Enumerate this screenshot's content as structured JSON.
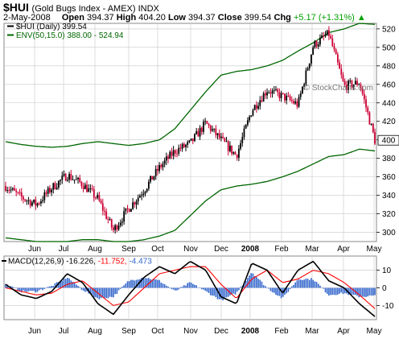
{
  "header": {
    "symbol": "$HUI",
    "name": "(Gold Bugs Index - AMEX) INDX",
    "date": "2-May-2008",
    "open_label": "Open",
    "open": "394.37",
    "high_label": "High",
    "high": "404.20",
    "low_label": "Low",
    "low": "394.37",
    "close_label": "Close",
    "close": "399.54",
    "chg_label": "Chg",
    "chg": "+5.17 (+1.31%)",
    "chg_arrow": "▲"
  },
  "watermark": "© StockCharts.com",
  "colors": {
    "price": "#000000",
    "down_candle": "#cc0033",
    "envelope": "#006600",
    "macd": "#000000",
    "signal": "#ff0000",
    "histogram": "#3366cc",
    "grid": "#c8c8c8",
    "positive": "#00a000"
  },
  "chart_data": [
    {
      "type": "line",
      "legend": [
        {
          "label": "$HUI (Daily) 399.54",
          "color": "#000000",
          "icon": "line-swatch"
        },
        {
          "label": "ENV(50,15.0) 388.00 - 524.94",
          "color": "#006600",
          "icon": "line-swatch"
        }
      ],
      "x_ticks": [
        "Jun",
        "Jul",
        "Aug",
        "Sep",
        "Oct",
        "Nov",
        "Dec",
        "2008",
        "Feb",
        "Mar",
        "Apr",
        "May"
      ],
      "y_ticks": [
        300,
        320,
        340,
        360,
        380,
        400,
        420,
        440,
        460,
        480,
        500,
        520
      ],
      "ylim": [
        290,
        526
      ],
      "grid": true,
      "y_axis_side": "right",
      "last_value_marker": 399.54,
      "x": [
        "May-2",
        "May-15",
        "Jun-1",
        "Jun-15",
        "Jul-1",
        "Jul-15",
        "Aug-1",
        "Aug-16",
        "Sep-1",
        "Sep-15",
        "Oct-1",
        "Oct-15",
        "Nov-1",
        "Nov-15",
        "Dec-1",
        "Dec-15",
        "Jan-1",
        "Jan-15",
        "Feb-1",
        "Feb-15",
        "Mar-1",
        "Mar-17",
        "Apr-1",
        "Apr-15",
        "May-2"
      ],
      "series": [
        {
          "name": "$HUI (Daily)",
          "values": [
            350,
            338,
            330,
            348,
            362,
            352,
            336,
            302,
            326,
            346,
            370,
            388,
            396,
            418,
            400,
            383,
            432,
            454,
            447,
            438,
            502,
            515,
            458,
            462,
            399.54
          ]
        },
        {
          "name": "ENV upper",
          "values": [
            398,
            395,
            393,
            392,
            393,
            396,
            398,
            396,
            394,
            396,
            400,
            412,
            432,
            452,
            470,
            474,
            476,
            480,
            486,
            496,
            505,
            516,
            520,
            526,
            524.94
          ]
        },
        {
          "name": "ENV lower",
          "values": [
            294,
            292,
            290,
            290,
            290,
            292,
            292,
            290,
            290,
            292,
            296,
            302,
            318,
            334,
            346,
            350,
            352,
            355,
            360,
            366,
            374,
            382,
            384,
            390,
            388.0
          ]
        }
      ]
    },
    {
      "type": "line",
      "legend": [
        {
          "label": "MACD(12,26,9)",
          "color": "#000000",
          "value": "-16.226,"
        },
        {
          "label": "",
          "color": "#ff0000",
          "value": "-11.752,"
        },
        {
          "label": "",
          "color": "#3366cc",
          "value": "-4.473"
        }
      ],
      "x_ticks": [
        "Jun",
        "Jul",
        "Aug",
        "Sep",
        "Oct",
        "Nov",
        "Dec",
        "2008",
        "Feb",
        "Mar",
        "Apr",
        "May"
      ],
      "y_ticks": [
        -10,
        0,
        10
      ],
      "ylim": [
        -18,
        18
      ],
      "grid": true,
      "x": [
        "May-2",
        "May-15",
        "Jun-1",
        "Jun-15",
        "Jul-1",
        "Jul-15",
        "Aug-1",
        "Aug-16",
        "Sep-1",
        "Sep-15",
        "Oct-1",
        "Oct-15",
        "Nov-1",
        "Nov-15",
        "Dec-1",
        "Dec-15",
        "Jan-1",
        "Jan-15",
        "Feb-1",
        "Feb-15",
        "Mar-1",
        "Mar-17",
        "Apr-1",
        "Apr-15",
        "May-2"
      ],
      "series": [
        {
          "name": "MACD",
          "values": [
            2,
            -4,
            -6,
            -2,
            8,
            3,
            -9,
            -15,
            -4,
            6,
            12,
            8,
            15,
            10,
            -5,
            -9,
            14,
            10,
            -3,
            10,
            15,
            4,
            0,
            -9,
            -16.226
          ]
        },
        {
          "name": "Signal",
          "values": [
            0,
            -2,
            -4,
            -3,
            2,
            4,
            -3,
            -10,
            -8,
            0,
            8,
            10,
            12,
            12,
            2,
            -6,
            5,
            10,
            3,
            5,
            10,
            8,
            3,
            -4,
            -11.752
          ]
        },
        {
          "name": "Histogram",
          "values": [
            2,
            -2,
            -2,
            1,
            6,
            -1,
            -6,
            -5,
            4,
            6,
            4,
            -2,
            3,
            -2,
            -7,
            -3,
            9,
            0,
            -6,
            5,
            5,
            -4,
            -3,
            -5,
            -4.473
          ]
        }
      ]
    }
  ]
}
